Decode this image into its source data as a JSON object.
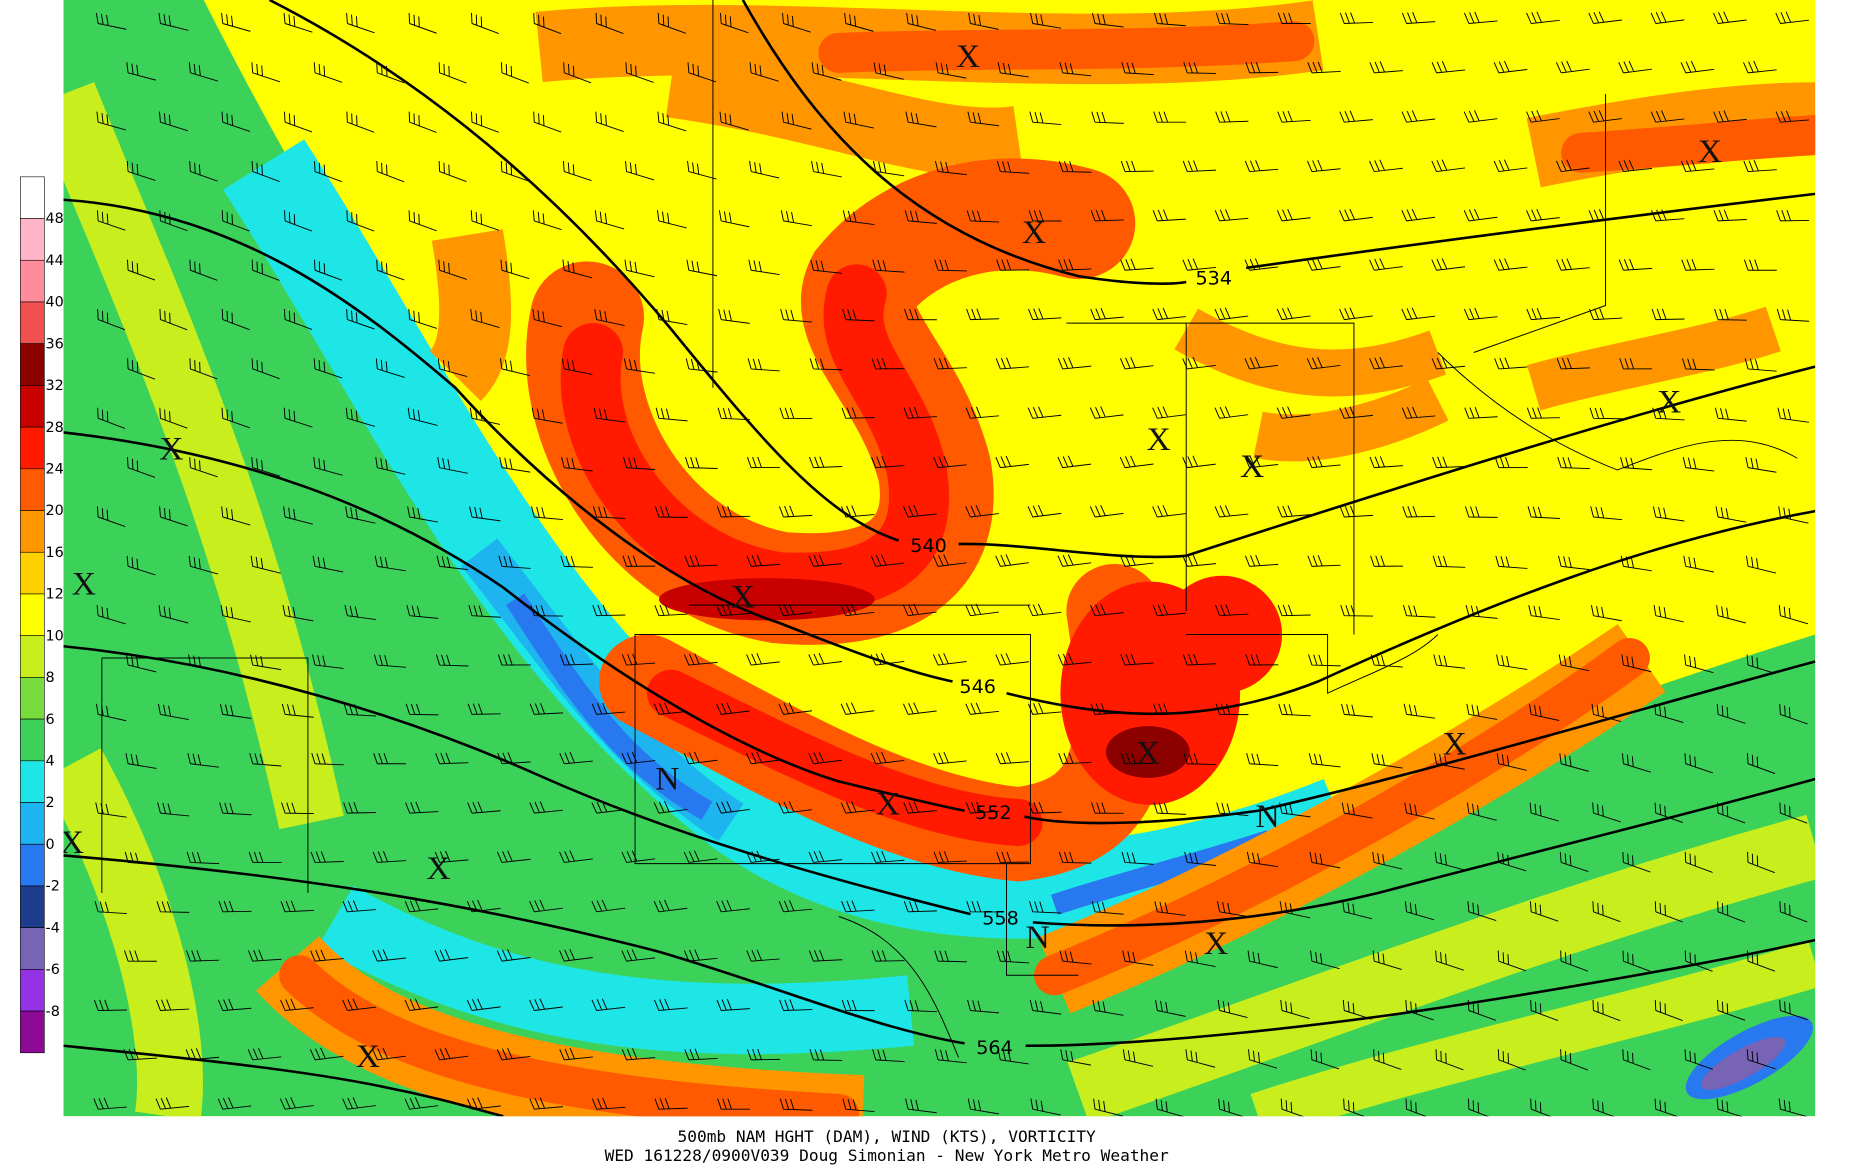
{
  "title": "500mb NAM HGHT (DAM), WIND (KTS), VORTICITY",
  "subtitle": "WED 161228/0900V039 Doug Simonian - New York Metro Weather",
  "colorbar": {
    "levels": [
      48,
      44,
      40,
      36,
      32,
      28,
      24,
      20,
      16,
      12,
      10,
      8,
      6,
      4,
      2,
      0,
      -2,
      -4,
      -6,
      -8
    ],
    "colors": [
      "#ffffff",
      "#ffb4c8",
      "#ff8c9a",
      "#f05050",
      "#8c0000",
      "#c80000",
      "#ff1a00",
      "#ff5a00",
      "#ff9600",
      "#ffd000",
      "#ffff00",
      "#c8ee1e",
      "#78dc3c",
      "#3cd25a",
      "#1ee6e6",
      "#1eb4f0",
      "#2878f0",
      "#1e3c8c",
      "#7864b4",
      "#9632e6",
      "#8c0a96"
    ]
  },
  "contours": [
    534,
    540,
    546,
    552,
    558,
    564
  ],
  "markers": [
    "X",
    "X",
    "X",
    "X",
    "X",
    "X",
    "X",
    "X",
    "X",
    "N",
    "X",
    "X",
    "X",
    "N",
    "X",
    "X",
    "N",
    "X",
    "X"
  ]
}
